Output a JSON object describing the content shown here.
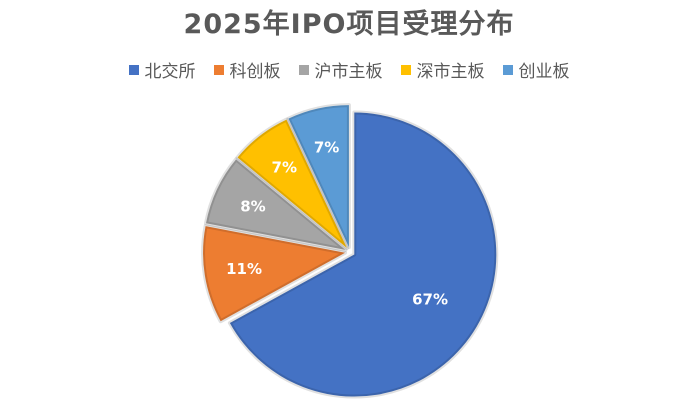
{
  "chart_data": {
    "type": "pie",
    "title": "2025年IPO项目受理分布",
    "categories": [
      "北交所",
      "科创板",
      "沪市主板",
      "深市主板",
      "创业板"
    ],
    "values": [
      67,
      11,
      8,
      7,
      7
    ],
    "value_labels": [
      "67%",
      "11%",
      "8%",
      "7%",
      "7%"
    ],
    "colors": [
      "#4472C4",
      "#ED7D31",
      "#A5A5A5",
      "#FFC000",
      "#5B9BD5"
    ],
    "legend_position": "top",
    "exploded": true
  }
}
